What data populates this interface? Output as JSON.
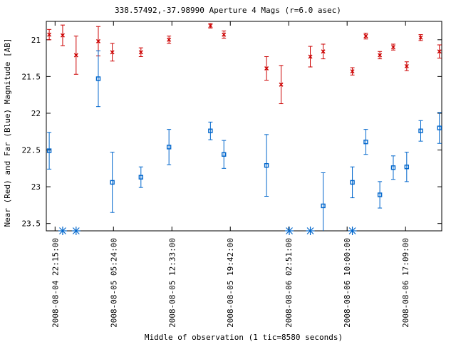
{
  "chart_data": {
    "type": "scatter",
    "title": "338.57492,-37.98990   Aperture 4 Mags (r=6.0 asec)",
    "xlabel": "Middle of observation (1 tic=8580 seconds)",
    "ylabel": "Near (Red) and Far (Blue) Magnitude [AB]",
    "ylim": [
      20.75,
      23.6
    ],
    "y_inverted": true,
    "xlim": [
      -0.15,
      6.62
    ],
    "grid": false,
    "legend": "none",
    "y_ticks": [
      21,
      21.5,
      22,
      22.5,
      23,
      23.5
    ],
    "y_tick_labels": [
      "21",
      "21.5",
      "22",
      "22.5",
      "23",
      "23.5"
    ],
    "x_ticks": [
      0,
      1,
      2,
      3,
      4,
      5,
      6
    ],
    "x_tick_labels": [
      "2008-08-04 22:15:00",
      "2008-08-05 05:24:00",
      "2008-08-05 12:33:00",
      "2008-08-05 19:42:00",
      "2008-08-06 02:51:00",
      "2008-08-06 10:00:00",
      "2008-08-06 17:09:00"
    ],
    "series": [
      {
        "color": "#cc0000",
        "marker": "x",
        "points": [
          {
            "x": -0.1,
            "y": 20.93,
            "err": 0.07
          },
          {
            "x": 0.13,
            "y": 20.94,
            "err": 0.14
          },
          {
            "x": 0.36,
            "y": 21.21,
            "err": 0.26
          },
          {
            "x": 0.74,
            "y": 21.02,
            "err": 0.2
          },
          {
            "x": 0.98,
            "y": 21.17,
            "err": 0.12
          },
          {
            "x": 1.47,
            "y": 21.17,
            "err": 0.06
          },
          {
            "x": 1.95,
            "y": 21.0,
            "err": 0.05
          },
          {
            "x": 2.66,
            "y": 20.81,
            "err": 0.03
          },
          {
            "x": 2.89,
            "y": 20.93,
            "err": 0.05
          },
          {
            "x": 3.62,
            "y": 21.39,
            "err": 0.16
          },
          {
            "x": 3.87,
            "y": 21.61,
            "err": 0.26
          },
          {
            "x": 4.37,
            "y": 21.23,
            "err": 0.14
          },
          {
            "x": 4.59,
            "y": 21.16,
            "err": 0.1
          },
          {
            "x": 5.09,
            "y": 21.43,
            "err": 0.05
          },
          {
            "x": 5.32,
            "y": 20.95,
            "err": 0.04
          },
          {
            "x": 5.56,
            "y": 21.21,
            "err": 0.05
          },
          {
            "x": 5.79,
            "y": 21.1,
            "err": 0.04
          },
          {
            "x": 6.02,
            "y": 21.36,
            "err": 0.06
          },
          {
            "x": 6.26,
            "y": 20.97,
            "err": 0.04
          },
          {
            "x": 6.58,
            "y": 21.16,
            "err": 0.09
          }
        ]
      },
      {
        "color": "#0066cc",
        "marker": "square",
        "points": [
          {
            "x": -0.1,
            "y": 22.51,
            "err": 0.25
          },
          {
            "x": 0.74,
            "y": 21.53,
            "err": 0.38
          },
          {
            "x": 0.98,
            "y": 22.94,
            "err": 0.41
          },
          {
            "x": 1.47,
            "y": 22.87,
            "err": 0.14
          },
          {
            "x": 1.95,
            "y": 22.46,
            "err": 0.24
          },
          {
            "x": 2.66,
            "y": 22.24,
            "err": 0.12
          },
          {
            "x": 2.89,
            "y": 22.56,
            "err": 0.19
          },
          {
            "x": 3.62,
            "y": 22.71,
            "err": 0.42
          },
          {
            "x": 4.59,
            "y": 23.26,
            "err": 0.45
          },
          {
            "x": 5.09,
            "y": 22.94,
            "err": 0.21
          },
          {
            "x": 5.32,
            "y": 22.39,
            "err": 0.17
          },
          {
            "x": 5.56,
            "y": 23.11,
            "err": 0.18
          },
          {
            "x": 5.79,
            "y": 22.74,
            "err": 0.16
          },
          {
            "x": 6.02,
            "y": 22.73,
            "err": 0.2
          },
          {
            "x": 6.26,
            "y": 22.24,
            "err": 0.14
          },
          {
            "x": 6.58,
            "y": 22.2,
            "err": 0.21
          }
        ]
      },
      {
        "color": "#0066cc",
        "marker": "asterisk",
        "points": [
          {
            "x": 0.13,
            "y": 23.7
          },
          {
            "x": 0.36,
            "y": 23.7
          },
          {
            "x": 4.01,
            "y": 23.7
          },
          {
            "x": 4.37,
            "y": 23.7
          },
          {
            "x": 5.09,
            "y": 23.7
          }
        ]
      }
    ]
  }
}
